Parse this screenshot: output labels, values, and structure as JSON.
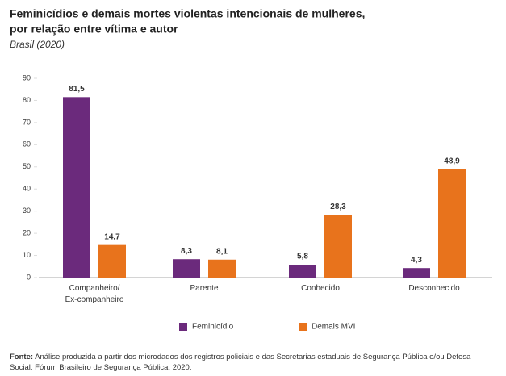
{
  "chart_data": {
    "type": "bar",
    "title": [
      "Feminicídios e demais mortes violentas intencionais de mulheres,",
      "por relação entre vítima e autor"
    ],
    "subtitle": "Brasil (2020)",
    "categories": [
      "Companheiro/\nEx-companheiro",
      "Parente",
      "Conhecido",
      "Desconhecido"
    ],
    "series": [
      {
        "name": "Feminicídio",
        "color": "#6b2a7c",
        "values": [
          81.5,
          8.3,
          5.8,
          4.3
        ],
        "value_labels": [
          "81,5",
          "8,3",
          "5,8",
          "4,3"
        ]
      },
      {
        "name": "Demais MVI",
        "color": "#e8731c",
        "values": [
          14.7,
          8.1,
          28.3,
          48.9
        ],
        "value_labels": [
          "14,7",
          "8,1",
          "28,3",
          "48,9"
        ]
      }
    ],
    "ylim": [
      0,
      90
    ],
    "yticks": [
      0,
      10,
      20,
      30,
      40,
      50,
      60,
      70,
      80,
      90
    ],
    "legend": "bottom",
    "source_label": "Fonte:",
    "source": "Análise produzida a partir dos microdados dos registros policiais e das Secretarias estaduais de Segurança Pública e/ou Defesa Social. Fórum Brasileiro de Segurança Pública, 2020."
  }
}
